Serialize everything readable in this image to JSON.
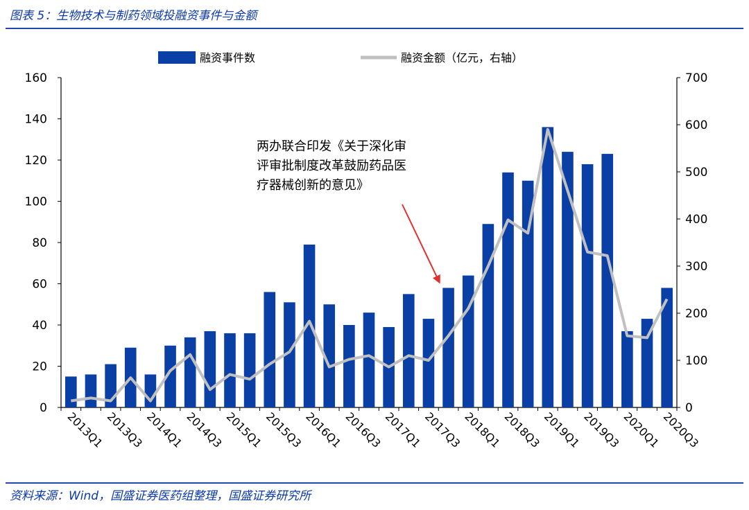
{
  "figure": {
    "title": "图表 5：生物技术与制药领域投融资事件与金额",
    "source": "资料来源：Wind，国盛证券医药组整理，国盛证券研究所"
  },
  "chart_data": {
    "type": "bar+line",
    "categories": [
      "2013Q1",
      "2013Q2",
      "2013Q3",
      "2013Q4",
      "2014Q1",
      "2014Q2",
      "2014Q3",
      "2014Q4",
      "2015Q1",
      "2015Q2",
      "2015Q3",
      "2015Q4",
      "2016Q1",
      "2016Q2",
      "2016Q3",
      "2016Q4",
      "2017Q1",
      "2017Q2",
      "2017Q3",
      "2017Q4",
      "2018Q1",
      "2018Q2",
      "2018Q3",
      "2018Q4",
      "2019Q1",
      "2019Q2",
      "2019Q3",
      "2019Q4",
      "2020Q1",
      "2020Q2",
      "2020Q3"
    ],
    "x_tick_labels": [
      "2013Q1",
      "2013Q3",
      "2014Q1",
      "2014Q3",
      "2015Q1",
      "2015Q3",
      "2016Q1",
      "2016Q3",
      "2017Q1",
      "2017Q3",
      "2018Q1",
      "2018Q3",
      "2019Q1",
      "2019Q3",
      "2020Q1",
      "2020Q3"
    ],
    "series": [
      {
        "name": "融资事件数",
        "type": "bar",
        "axis": "left",
        "color": "#0a3fa5",
        "values": [
          15,
          16,
          21,
          29,
          16,
          30,
          34,
          37,
          36,
          36,
          56,
          51,
          79,
          50,
          40,
          46,
          39,
          55,
          43,
          58,
          64,
          89,
          114,
          110,
          136,
          124,
          118,
          123,
          37,
          43,
          58
        ]
      },
      {
        "name": "融资金额（亿元，右轴）",
        "type": "line",
        "axis": "right",
        "color": "#c0c0c0",
        "values": [
          14,
          20,
          14,
          63,
          14,
          78,
          112,
          38,
          70,
          60,
          92,
          118,
          183,
          86,
          102,
          110,
          86,
          110,
          100,
          152,
          210,
          300,
          398,
          370,
          590,
          460,
          330,
          322,
          152,
          148,
          230
        ]
      }
    ],
    "y_left": {
      "lim": [
        0,
        160
      ],
      "ticks": [
        "0",
        "20",
        "40",
        "60",
        "80",
        "100",
        "120",
        "140",
        "160"
      ]
    },
    "y_right": {
      "lim": [
        0,
        700
      ],
      "ticks": [
        "0",
        "100",
        "200",
        "300",
        "400",
        "500",
        "600",
        "700"
      ]
    },
    "legend_position": "top",
    "grid": false,
    "annotation": {
      "lines": [
        "两办联合印发《关于深化审",
        "评审批制度改革鼓励药品医",
        "疗器械创新的意见》"
      ],
      "arrow_color": "#e03030",
      "target_category": "2017Q4"
    }
  }
}
